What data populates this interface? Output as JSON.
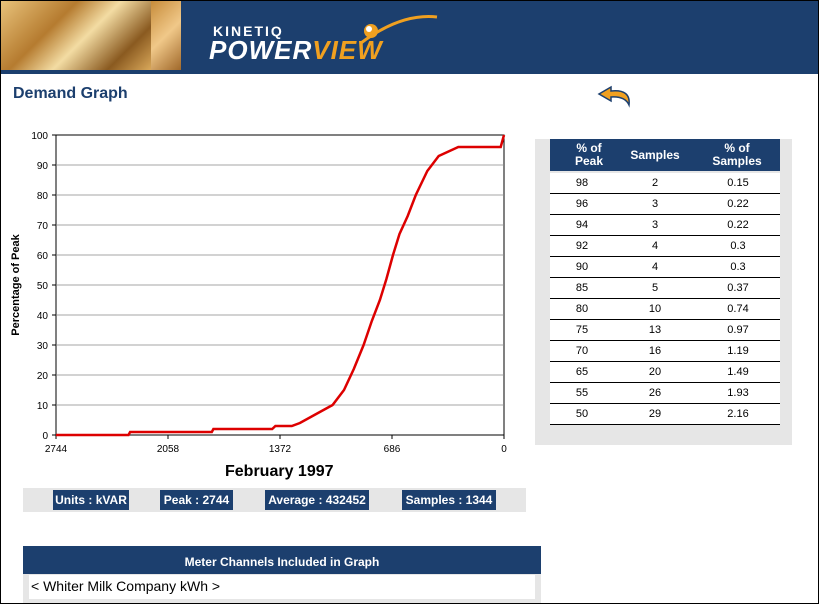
{
  "brand": {
    "kinetiq": "KINETIQ",
    "power": "POWER",
    "view": "VIEW"
  },
  "page": {
    "title": "Demand Graph"
  },
  "colors": {
    "navy": "#1c3f6e",
    "line": "#dd0000",
    "accent": "#f0a020"
  },
  "icons": {
    "back": "back-arrow-icon"
  },
  "chart_data": {
    "type": "line",
    "title": "February  1997",
    "ylabel": "Percentage of Peak",
    "xlabel": "",
    "x_ticks": [
      "2744",
      "2058",
      "1372",
      "686",
      "0"
    ],
    "y_ticks": [
      "0",
      "10",
      "20",
      "30",
      "40",
      "50",
      "60",
      "70",
      "80",
      "90",
      "100"
    ],
    "xlim": [
      2744,
      0
    ],
    "ylim": [
      0,
      100
    ],
    "grid": true,
    "series": [
      {
        "color": "#dd0000",
        "points": [
          [
            2744,
            0
          ],
          [
            2300,
            0
          ],
          [
            2290,
            1
          ],
          [
            2100,
            1
          ],
          [
            1790,
            1
          ],
          [
            1780,
            2
          ],
          [
            1420,
            2
          ],
          [
            1400,
            3
          ],
          [
            1300,
            3
          ],
          [
            1250,
            4
          ],
          [
            1150,
            7
          ],
          [
            1050,
            10
          ],
          [
            980,
            15
          ],
          [
            920,
            22
          ],
          [
            860,
            30
          ],
          [
            810,
            38
          ],
          [
            760,
            45
          ],
          [
            720,
            52
          ],
          [
            680,
            60
          ],
          [
            640,
            67
          ],
          [
            590,
            73
          ],
          [
            540,
            80
          ],
          [
            470,
            88
          ],
          [
            400,
            93
          ],
          [
            280,
            96
          ],
          [
            20,
            96
          ],
          [
            0,
            100
          ]
        ]
      }
    ]
  },
  "stats": {
    "units": "Units : kVAR",
    "peak": "Peak : 2744",
    "average": "Average : 432452",
    "samples": "Samples : 1344"
  },
  "table": {
    "headers": [
      "% of\nPeak",
      "Samples",
      "% of\nSamples"
    ],
    "rows": [
      [
        "98",
        "2",
        "0.15"
      ],
      [
        "96",
        "3",
        "0.22"
      ],
      [
        "94",
        "3",
        "0.22"
      ],
      [
        "92",
        "4",
        "0.3"
      ],
      [
        "90",
        "4",
        "0.3"
      ],
      [
        "85",
        "5",
        "0.37"
      ],
      [
        "80",
        "10",
        "0.74"
      ],
      [
        "75",
        "13",
        "0.97"
      ],
      [
        "70",
        "16",
        "1.19"
      ],
      [
        "65",
        "20",
        "1.49"
      ],
      [
        "55",
        "26",
        "1.93"
      ],
      [
        "50",
        "29",
        "2.16"
      ]
    ]
  },
  "meter": {
    "header": "Meter Channels Included in Graph",
    "channel": "< Whiter Milk Company kWh >"
  }
}
